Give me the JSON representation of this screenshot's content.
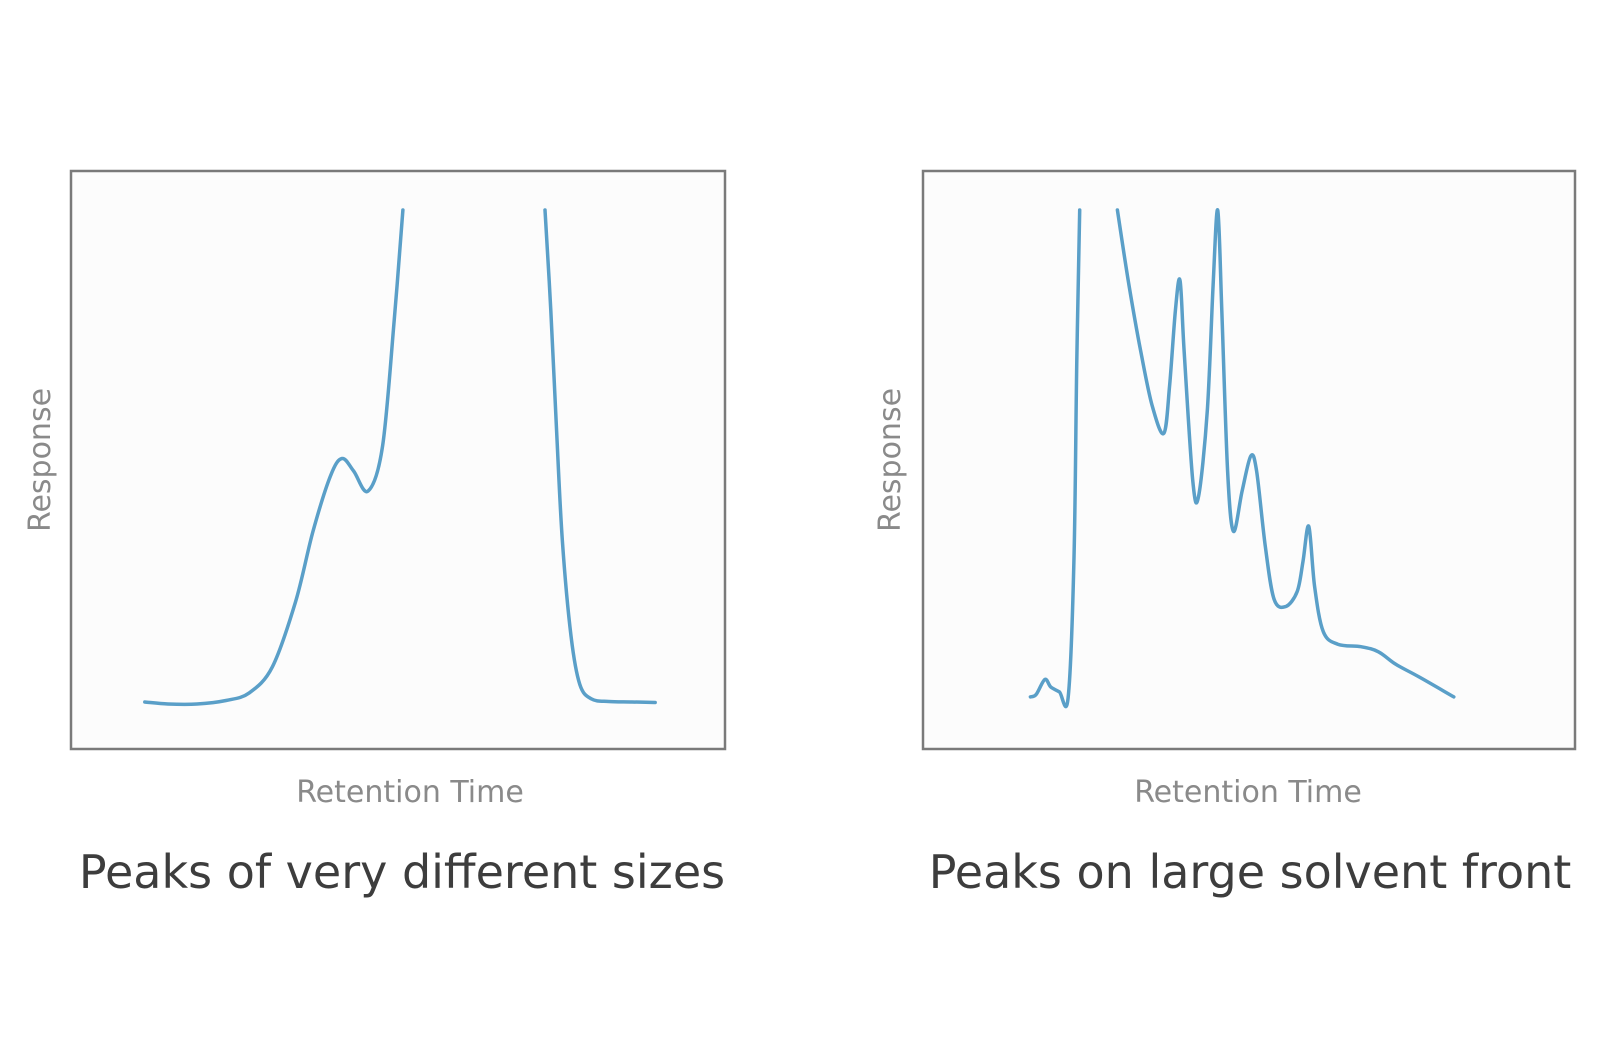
{
  "colors": {
    "trace": "#5a9fc8",
    "frame": "#7a7a7a",
    "axis_text": "#8a8a8a",
    "caption_text": "#3d3d3d"
  },
  "chart_data": [
    {
      "type": "line",
      "title": "",
      "caption": "Peaks of very different sizes",
      "xlabel": "Retention Time",
      "ylabel": "Response",
      "xlim": [
        0,
        100
      ],
      "ylim": [
        0,
        100
      ],
      "ticks": "none",
      "grid": false,
      "legend": "none",
      "series": [
        {
          "segments": [
            [
              [
                6,
                2
              ],
              [
                10,
                1.6
              ],
              [
                15,
                1.6
              ],
              [
                20,
                2.3
              ],
              [
                24,
                3.8
              ],
              [
                28,
                9
              ],
              [
                32,
                22
              ],
              [
                35,
                36
              ],
              [
                38,
                47
              ],
              [
                40,
                50.5
              ],
              [
                42,
                48
              ],
              [
                44.5,
                44
              ],
              [
                47,
                53
              ],
              [
                49,
                78
              ],
              [
                50.5,
                100
              ]
            ],
            [
              [
                75,
                100
              ],
              [
                76,
                80
              ],
              [
                77,
                56
              ],
              [
                78,
                34
              ],
              [
                79.5,
                15
              ],
              [
                81,
                5.5
              ],
              [
                83,
                2.6
              ],
              [
                86,
                2.1
              ],
              [
                90,
                2
              ],
              [
                94,
                1.9
              ]
            ]
          ]
        }
      ]
    },
    {
      "type": "line",
      "title": "",
      "caption": "Peaks on large solvent front",
      "xlabel": "Retention Time",
      "ylabel": "Response",
      "xlim": [
        0,
        100
      ],
      "ylim": [
        0,
        100
      ],
      "ticks": "none",
      "grid": false,
      "legend": "none",
      "series": [
        {
          "segments": [
            [
              [
                13,
                3
              ],
              [
                14,
                3.5
              ],
              [
                15.5,
                6.5
              ],
              [
                16.5,
                5
              ],
              [
                18,
                4
              ],
              [
                19.5,
                2.8
              ],
              [
                20.5,
                30
              ],
              [
                21,
                70
              ],
              [
                21.5,
                100
              ]
            ],
            [
              [
                28,
                100
              ],
              [
                30,
                85
              ],
              [
                32,
                72
              ],
              [
                34,
                61
              ],
              [
                36,
                55.5
              ],
              [
                37,
                65
              ],
              [
                38,
                80
              ],
              [
                38.8,
                86
              ],
              [
                39.5,
                72
              ],
              [
                41,
                46
              ],
              [
                42,
                43
              ],
              [
                43.5,
                60
              ],
              [
                44.5,
                85
              ],
              [
                45.3,
                100
              ],
              [
                46,
                80
              ],
              [
                47,
                48
              ],
              [
                48,
                36
              ],
              [
                49.5,
                44
              ],
              [
                51,
                51
              ],
              [
                52,
                48
              ],
              [
                53.5,
                33
              ],
              [
                55,
                22.5
              ],
              [
                57,
                21
              ],
              [
                59,
                24
              ],
              [
                60,
                30
              ],
              [
                61,
                37
              ],
              [
                62,
                25
              ],
              [
                63.5,
                16
              ],
              [
                66,
                13.5
              ],
              [
                70,
                13
              ],
              [
                73,
                12
              ],
              [
                76,
                9.5
              ],
              [
                80,
                7
              ],
              [
                86,
                3
              ]
            ]
          ]
        }
      ]
    }
  ]
}
